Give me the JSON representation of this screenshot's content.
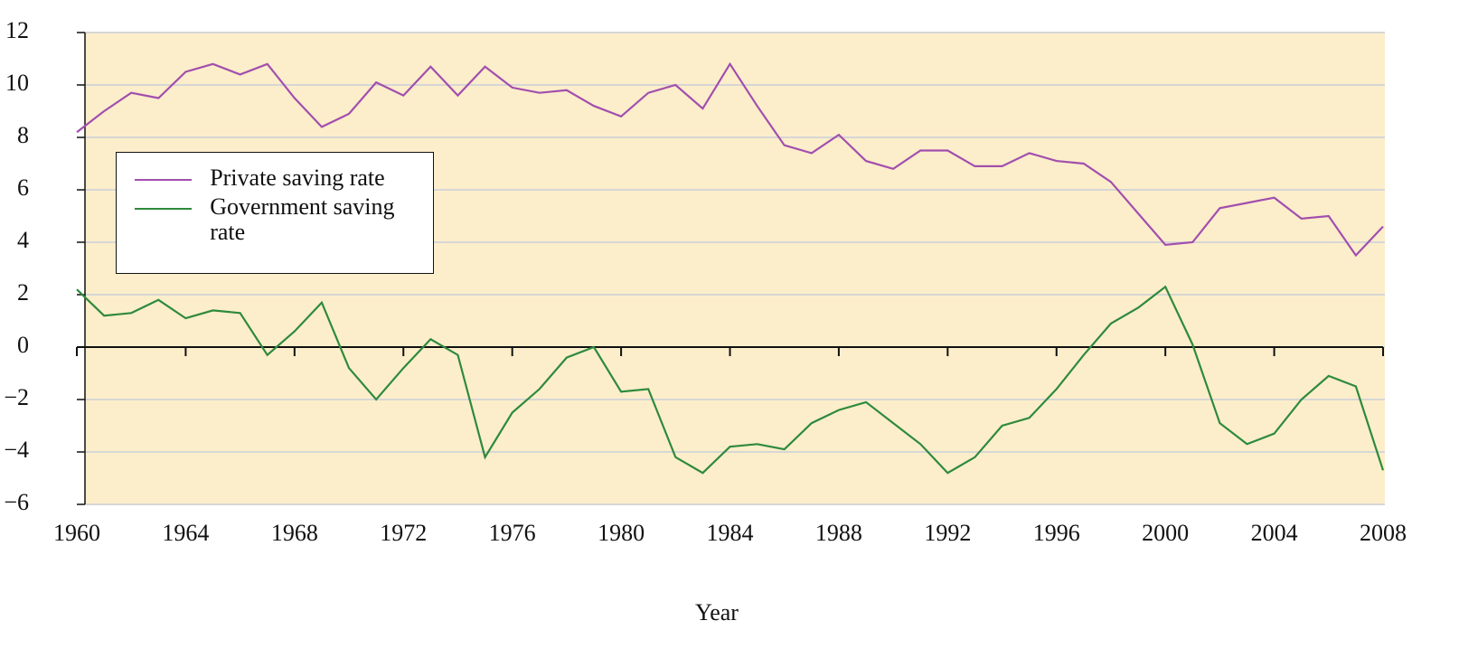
{
  "chart_data": {
    "type": "line",
    "xlabel": "Year",
    "x": [
      1960,
      1961,
      1962,
      1963,
      1964,
      1965,
      1966,
      1967,
      1968,
      1969,
      1970,
      1971,
      1972,
      1973,
      1974,
      1975,
      1976,
      1977,
      1978,
      1979,
      1980,
      1981,
      1982,
      1983,
      1984,
      1985,
      1986,
      1987,
      1988,
      1989,
      1990,
      1991,
      1992,
      1993,
      1994,
      1995,
      1996,
      1997,
      1998,
      1999,
      2000,
      2001,
      2002,
      2003,
      2004,
      2005,
      2006,
      2007,
      2008
    ],
    "series": [
      {
        "name": "Private saving rate",
        "color": "#a24fae",
        "values": [
          8.2,
          9.0,
          9.7,
          9.5,
          10.5,
          10.8,
          10.4,
          10.8,
          9.5,
          8.4,
          8.9,
          10.1,
          9.6,
          10.7,
          9.6,
          10.7,
          9.9,
          9.7,
          9.8,
          9.2,
          8.8,
          9.7,
          10.0,
          9.1,
          10.8,
          9.2,
          7.7,
          7.4,
          8.1,
          7.1,
          6.8,
          7.5,
          7.5,
          6.9,
          6.9,
          7.4,
          7.1,
          7.0,
          6.3,
          5.1,
          3.9,
          4.0,
          5.3,
          5.5,
          5.7,
          4.9,
          5.0,
          3.5,
          4.6
        ]
      },
      {
        "name": "Government saving rate",
        "color": "#2e8a3c",
        "values": [
          2.2,
          1.2,
          1.3,
          1.8,
          1.1,
          1.4,
          1.3,
          -0.3,
          0.6,
          1.7,
          -0.8,
          -2.0,
          -0.8,
          0.3,
          -0.3,
          -4.2,
          -2.5,
          -1.6,
          -0.4,
          0.0,
          -1.7,
          -1.6,
          -4.2,
          -4.8,
          -3.8,
          -3.7,
          -3.9,
          -2.9,
          -2.4,
          -2.1,
          -2.9,
          -3.7,
          -4.8,
          -4.2,
          -3.0,
          -2.7,
          -1.6,
          -0.3,
          0.9,
          1.5,
          2.3,
          0.1,
          -2.9,
          -3.7,
          -3.3,
          -2.0,
          -1.1,
          -1.5,
          -4.7
        ]
      }
    ],
    "xlim": [
      1960,
      2008
    ],
    "xticks": [
      1960,
      1964,
      1968,
      1972,
      1976,
      1980,
      1984,
      1988,
      1992,
      1996,
      2000,
      2004,
      2008
    ],
    "ylim": [
      -6,
      12
    ],
    "yticks": [
      {
        "value": -6,
        "label": "−6"
      },
      {
        "value": -4,
        "label": "−4"
      },
      {
        "value": -2,
        "label": "−2"
      },
      0,
      2,
      4,
      6,
      8,
      10,
      12
    ],
    "grid": true,
    "legend": "upper left",
    "background": "#fdeecb"
  }
}
